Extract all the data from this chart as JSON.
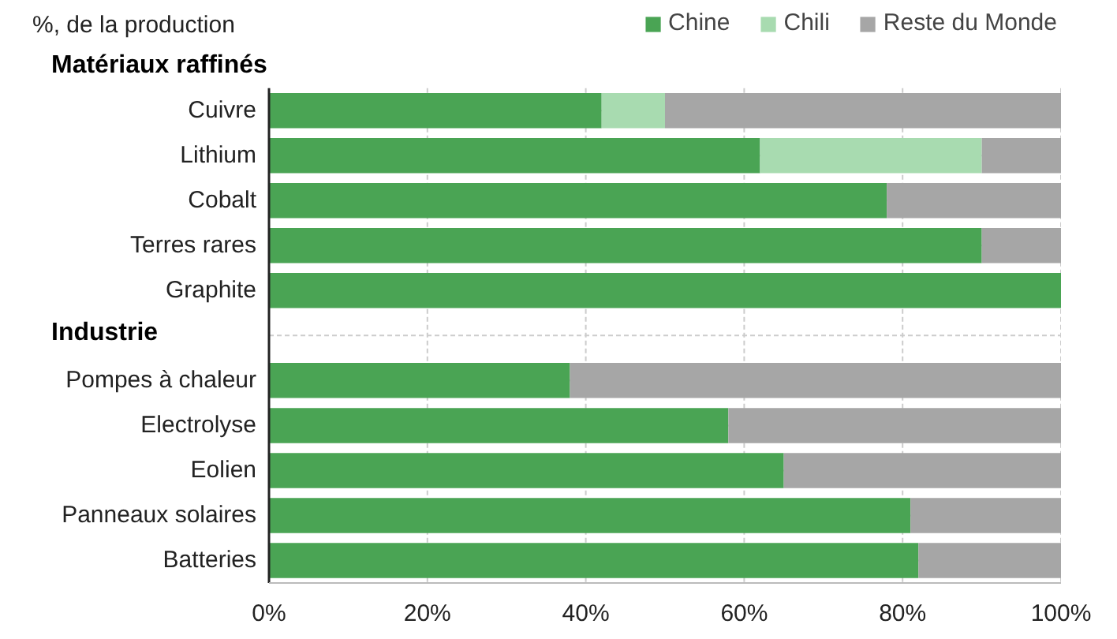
{
  "chart_data": {
    "type": "bar",
    "orientation": "horizontal",
    "stacked": true,
    "ylabel": "%, de la production",
    "annotations": [
      "Matériaux raffinés",
      "Industrie"
    ],
    "categories": [
      "Cuivre",
      "Lithium",
      "Cobalt",
      "Terres rares",
      "Graphite",
      null,
      "Pompes à chaleur",
      "Electrolyse",
      "Eolien",
      "Panneaux solaires",
      "Batteries"
    ],
    "series": [
      {
        "name": "Chine",
        "color": "#4aa454",
        "values": [
          42,
          62,
          78,
          90,
          100,
          null,
          38,
          58,
          65,
          81,
          82
        ]
      },
      {
        "name": "Chili",
        "color": "#a8dbb0",
        "values": [
          8,
          28,
          0,
          0,
          0,
          null,
          0,
          0,
          0,
          0,
          0
        ]
      },
      {
        "name": "Reste du Monde",
        "color": "#a6a6a6",
        "values": [
          50,
          10,
          22,
          10,
          0,
          null,
          62,
          42,
          35,
          19,
          18
        ]
      }
    ],
    "xlim": [
      0,
      100
    ],
    "xticks": [
      {
        "value": 0,
        "label": "0%"
      },
      {
        "value": 20,
        "label": "20%"
      },
      {
        "value": 40,
        "label": "40%"
      },
      {
        "value": 60,
        "label": "60%"
      },
      {
        "value": 80,
        "label": "80%"
      },
      {
        "value": 100,
        "label": "100%"
      }
    ],
    "grid": true,
    "legend": "top right"
  }
}
